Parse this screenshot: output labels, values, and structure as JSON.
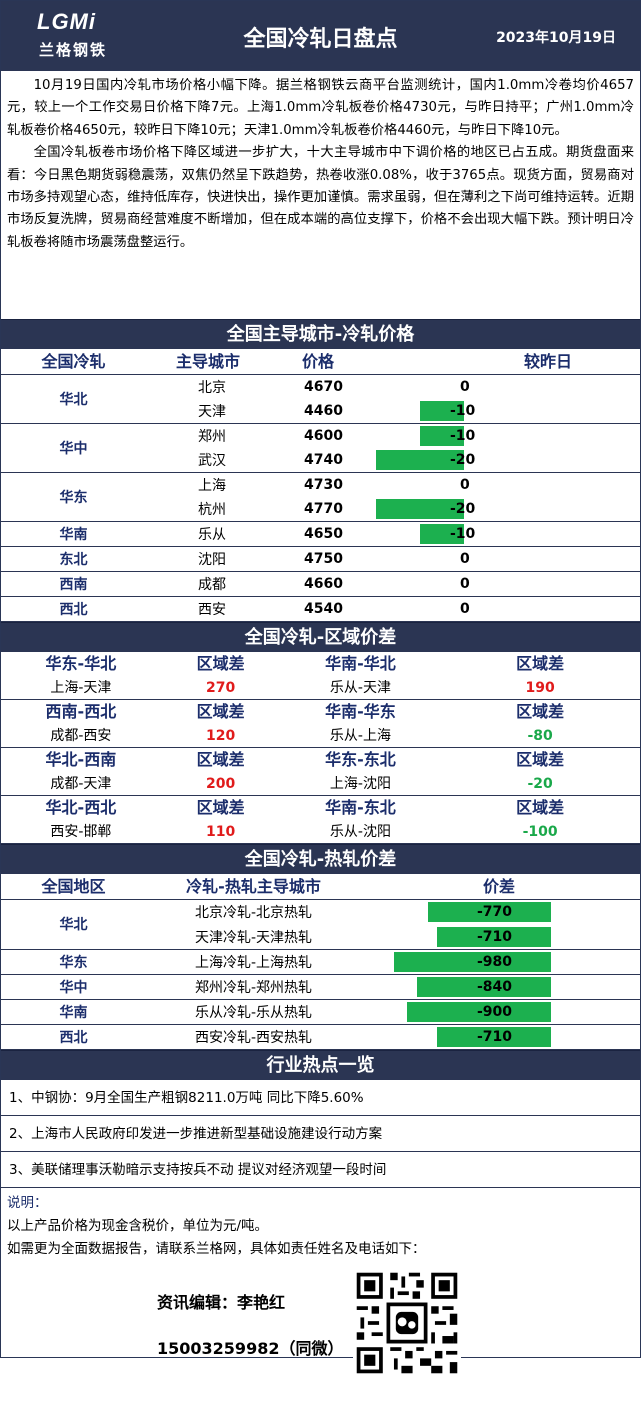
{
  "header": {
    "logo_text": "LGMi",
    "logo_sub": "兰格钢铁",
    "title": "全国冷轧日盘点",
    "date": "2023年10月19日"
  },
  "intro": [
    "10月19日国内冷轧市场价格小幅下降。据兰格钢铁云商平台监测统计，国内1.0mm冷卷均价4657元，较上一个工作交易日价格下降7元。上海1.0mm冷轧板卷价格4730元，与昨日持平；广州1.0mm冷轧板卷价格4650元，较昨日下降10元；天津1.0mm冷轧板卷价格4460元，与昨日下降10元。",
    "全国冷轧板卷市场价格下降区域进一步扩大，十大主导城市中下调价格的地区已占五成。期货盘面来看：今日黑色期货弱稳震荡，双焦仍然呈下跌趋势，热卷收涨0.08%，收于3765点。现货方面，贸易商对市场多持观望心态，维持低库存，快进快出，操作更加谨慎。需求虽弱，但在薄利之下尚可维持运转。近期市场反复洗牌，贸易商经营难度不断增加，但在成本端的高位支撑下，价格不会出现大幅下跌。预计明日冷轧板卷将随市场震荡盘整运行。"
  ],
  "price_section": {
    "title": "全国主导城市-冷轧价格",
    "headers": [
      "全国冷轧",
      "主导城市",
      "价格",
      "较昨日"
    ],
    "groups": [
      {
        "region": "华北",
        "rows": [
          {
            "city": "北京",
            "price": "4670",
            "change": 0
          },
          {
            "city": "天津",
            "price": "4460",
            "change": -10
          }
        ]
      },
      {
        "region": "华中",
        "rows": [
          {
            "city": "郑州",
            "price": "4600",
            "change": -10
          },
          {
            "city": "武汉",
            "price": "4740",
            "change": -20
          }
        ]
      },
      {
        "region": "华东",
        "rows": [
          {
            "city": "上海",
            "price": "4730",
            "change": 0
          },
          {
            "city": "杭州",
            "price": "4770",
            "change": -20
          }
        ]
      },
      {
        "region": "华南",
        "rows": [
          {
            "city": "乐从",
            "price": "4650",
            "change": -10
          }
        ]
      },
      {
        "region": "东北",
        "rows": [
          {
            "city": "沈阳",
            "price": "4750",
            "change": 0
          }
        ]
      },
      {
        "region": "西南",
        "rows": [
          {
            "city": "成都",
            "price": "4660",
            "change": 0
          }
        ]
      },
      {
        "region": "西北",
        "rows": [
          {
            "city": "西安",
            "price": "4540",
            "change": 0
          }
        ]
      }
    ],
    "bar_color": "#1cb04f"
  },
  "diff_section": {
    "title": "全国冷轧-区域价差",
    "blocks": [
      {
        "left": {
          "region": "华东-华北",
          "label": "区域差",
          "pair": "上海-天津",
          "value": "270",
          "color": "red"
        },
        "right": {
          "region": "华南-华北",
          "label": "区域差",
          "pair": "乐从-天津",
          "value": "190",
          "color": "red"
        }
      },
      {
        "left": {
          "region": "西南-西北",
          "label": "区域差",
          "pair": "成都-西安",
          "value": "120",
          "color": "red"
        },
        "right": {
          "region": "华南-华东",
          "label": "区域差",
          "pair": "乐从-上海",
          "value": "-80",
          "color": "green"
        }
      },
      {
        "left": {
          "region": "华北-西南",
          "label": "区域差",
          "pair": "成都-天津",
          "value": "200",
          "color": "red"
        },
        "right": {
          "region": "华东-东北",
          "label": "区域差",
          "pair": "上海-沈阳",
          "value": "-20",
          "color": "green"
        }
      },
      {
        "left": {
          "region": "华北-西北",
          "label": "区域差",
          "pair": "西安-邯郸",
          "value": "110",
          "color": "red"
        },
        "right": {
          "region": "华南-东北",
          "label": "区域差",
          "pair": "乐从-沈阳",
          "value": "-100",
          "color": "green"
        }
      }
    ]
  },
  "hc_section": {
    "title": "全国冷轧-热轧价差",
    "headers": [
      "全国地区",
      "冷轧-热轧主导城市",
      "价差"
    ],
    "groups": [
      {
        "region": "华北",
        "rows": [
          {
            "pair": "北京冷轧-北京热轧",
            "value": -770
          },
          {
            "pair": "天津冷轧-天津热轧",
            "value": -710
          }
        ]
      },
      {
        "region": "华东",
        "rows": [
          {
            "pair": "上海冷轧-上海热轧",
            "value": -980
          }
        ]
      },
      {
        "region": "华中",
        "rows": [
          {
            "pair": "郑州冷轧-郑州热轧",
            "value": -840
          }
        ]
      },
      {
        "region": "华南",
        "rows": [
          {
            "pair": "乐从冷轧-乐从热轧",
            "value": -900
          }
        ]
      },
      {
        "region": "西北",
        "rows": [
          {
            "pair": "西安冷轧-西安热轧",
            "value": -710
          }
        ]
      }
    ]
  },
  "news_section": {
    "title": "行业热点一览",
    "items": [
      "1、中钢协：9月全国生产粗钢8211.0万吨 同比下降5.60%",
      "2、上海市人民政府印发进一步推进新型基础设施建设行动方案",
      "3、美联储理事沃勒暗示支持按兵不动 提议对经济观望一段时间"
    ]
  },
  "note": {
    "label": "说明：",
    "lines": [
      "以上产品价格为现金含税价，单位为元/吨。",
      "如需更为全面数据报告，请联系兰格网，具体如责任姓名及电话如下："
    ]
  },
  "contact": {
    "name": "资讯编辑：李艳红",
    "phone": "15003259982（同微）"
  }
}
